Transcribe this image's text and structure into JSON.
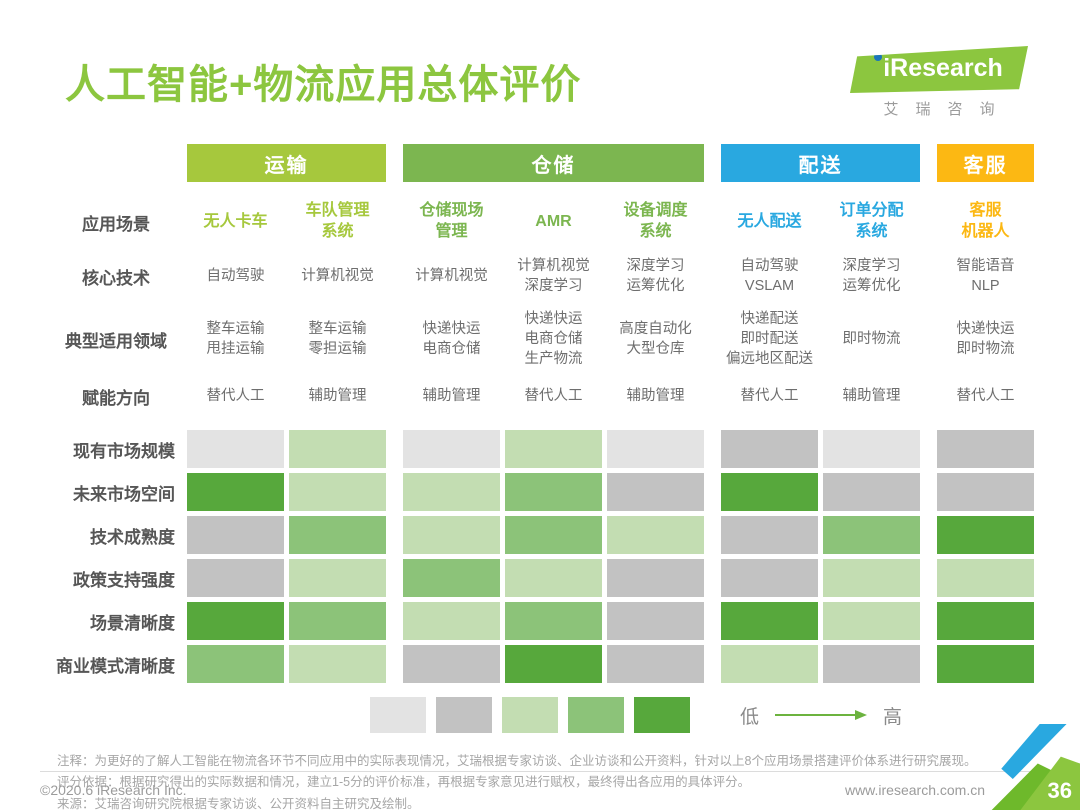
{
  "page": {
    "title": "人工智能+物流应用总体评价",
    "logo": {
      "brand": "iResearch",
      "sub": "艾瑞咨询"
    },
    "footer_left": "©2020.6 iResearch Inc.",
    "footer_right": "www.iresearch.com.cn",
    "page_number": "36"
  },
  "colors": {
    "title_green": "#8cc63f",
    "band_transport": "#a6c83d",
    "band_warehouse": "#7cb650",
    "band_delivery": "#29a8e0",
    "band_service": "#fcb813",
    "scale": [
      "#e3e3e3",
      "#c2c2c2",
      "#c3ddb2",
      "#8cc379",
      "#57a83c"
    ]
  },
  "table": {
    "groups": [
      {
        "label": "运输"
      },
      {
        "label": "仓储"
      },
      {
        "label": "配送"
      },
      {
        "label": "客服"
      }
    ],
    "row_labels": {
      "scenario": "应用场景",
      "tech": "核心技术",
      "fields": "典型适用领域",
      "direction": "赋能方向"
    },
    "columns": [
      {
        "scenario": "无人卡车",
        "tech": "自动驾驶",
        "fields": "整车运输\n甩挂运输",
        "direction": "替代人工"
      },
      {
        "scenario": "车队管理\n系统",
        "tech": "计算机视觉",
        "fields": "整车运输\n零担运输",
        "direction": "辅助管理"
      },
      {
        "scenario": "仓储现场\n管理",
        "tech": "计算机视觉",
        "fields": "快递快运\n电商仓储",
        "direction": "辅助管理"
      },
      {
        "scenario": "AMR",
        "tech": "计算机视觉\n深度学习",
        "fields": "快递快运\n电商仓储\n生产物流",
        "direction": "替代人工"
      },
      {
        "scenario": "设备调度\n系统",
        "tech": "深度学习\n运筹优化",
        "fields": "高度自动化\n大型仓库",
        "direction": "辅助管理"
      },
      {
        "scenario": "无人配送",
        "tech": "自动驾驶\nVSLAM",
        "fields": "快递配送\n即时配送\n偏远地区配送",
        "direction": "替代人工"
      },
      {
        "scenario": "订单分配\n系统",
        "tech": "深度学习\n运筹优化",
        "fields": "即时物流",
        "direction": "辅助管理"
      },
      {
        "scenario": "客服\n机器人",
        "tech": "智能语音\nNLP",
        "fields": "快递快运\n即时物流",
        "direction": "替代人工"
      }
    ]
  },
  "matrix": {
    "rows": [
      {
        "label": "现有市场规模",
        "values": [
          1,
          3,
          1,
          3,
          1,
          2,
          1,
          2
        ]
      },
      {
        "label": "未来市场空间",
        "values": [
          5,
          3,
          3,
          4,
          2,
          5,
          2,
          2
        ]
      },
      {
        "label": "技术成熟度",
        "values": [
          2,
          4,
          3,
          4,
          3,
          2,
          4,
          5
        ]
      },
      {
        "label": "政策支持强度",
        "values": [
          2,
          3,
          4,
          3,
          2,
          2,
          3,
          3
        ]
      },
      {
        "label": "场景清晰度",
        "values": [
          5,
          4,
          3,
          4,
          2,
          5,
          3,
          5
        ]
      },
      {
        "label": "商业模式清晰度",
        "values": [
          4,
          3,
          2,
          5,
          2,
          3,
          2,
          5
        ]
      }
    ]
  },
  "legend": {
    "low": "低",
    "high": "高"
  },
  "notes": [
    "注释：为更好的了解人工智能在物流各环节不同应用中的实际表现情况，艾瑞根据专家访谈、企业访谈和公开资料，针对以上8个应用场景搭建评价体系进行研究展现。",
    "评分依据：根据研究得出的实际数据和情况，建立1-5分的评价标准，再根据专家意见进行赋权，最终得出各应用的具体评分。",
    "来源：艾瑞咨询研究院根据专家访谈、公开资料自主研究及绘制。"
  ],
  "chart_data": {
    "type": "heatmap",
    "title": "人工智能+物流应用总体评价",
    "column_groups": [
      {
        "label": "运输",
        "columns": [
          "无人卡车",
          "车队管理系统"
        ]
      },
      {
        "label": "仓储",
        "columns": [
          "仓储现场管理",
          "AMR",
          "设备调度系统"
        ]
      },
      {
        "label": "配送",
        "columns": [
          "无人配送",
          "订单分配系统"
        ]
      },
      {
        "label": "客服",
        "columns": [
          "客服机器人"
        ]
      }
    ],
    "columns": [
      "无人卡车",
      "车队管理系统",
      "仓储现场管理",
      "AMR",
      "设备调度系统",
      "无人配送",
      "订单分配系统",
      "客服机器人"
    ],
    "rows": [
      "现有市场规模",
      "未来市场空间",
      "技术成熟度",
      "政策支持强度",
      "场景清晰度",
      "商业模式清晰度"
    ],
    "values": [
      [
        1,
        3,
        1,
        3,
        1,
        2,
        1,
        2
      ],
      [
        5,
        3,
        3,
        4,
        2,
        5,
        2,
        2
      ],
      [
        2,
        4,
        3,
        4,
        3,
        2,
        4,
        5
      ],
      [
        2,
        3,
        4,
        3,
        2,
        2,
        3,
        3
      ],
      [
        5,
        4,
        3,
        4,
        2,
        5,
        3,
        5
      ],
      [
        4,
        3,
        2,
        5,
        2,
        3,
        2,
        5
      ]
    ],
    "scale": {
      "levels": 5,
      "min_label": "低",
      "max_label": "高"
    },
    "legend_position": "bottom"
  }
}
